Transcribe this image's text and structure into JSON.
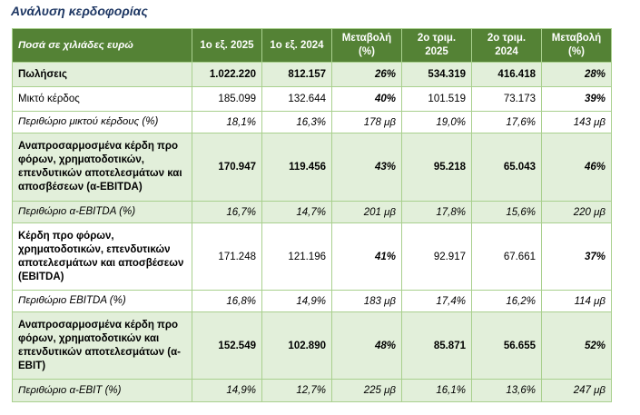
{
  "title": "Ανάλυση κερδοφορίας",
  "columns": [
    "Ποσά σε χιλιάδες ευρώ",
    "1ο εξ. 2025",
    "1ο εξ. 2024",
    "Μεταβολή (%)",
    "2ο τριμ. 2025",
    "2ο τριμ. 2024",
    "Μεταβολή (%)"
  ],
  "rows": [
    {
      "label": "Πωλήσεις",
      "h1_2025": "1.022.220",
      "h1_2024": "812.157",
      "h1_change": "26%",
      "q2_2025": "534.319",
      "q2_2024": "416.418",
      "q2_change": "28%"
    },
    {
      "label": "Μικτό κέρδος",
      "h1_2025": "185.099",
      "h1_2024": "132.644",
      "h1_change": "40%",
      "q2_2025": "101.519",
      "q2_2024": "73.173",
      "q2_change": "39%"
    },
    {
      "label": "Περιθώριο μικτού κέρδους (%)",
      "h1_2025": "18,1%",
      "h1_2024": "16,3%",
      "h1_change": "178 μβ",
      "q2_2025": "19,0%",
      "q2_2024": "17,6%",
      "q2_change": "143 μβ"
    },
    {
      "label": "Αναπροσαρμοσμένα κέρδη προ φόρων, χρηματοδοτικών, επενδυτικών αποτελεσμάτων και αποσβέσεων (α-EBITDA)",
      "h1_2025": "170.947",
      "h1_2024": "119.456",
      "h1_change": "43%",
      "q2_2025": "95.218",
      "q2_2024": "65.043",
      "q2_change": "46%"
    },
    {
      "label": "Περιθώριο α-EBITDA (%)",
      "h1_2025": "16,7%",
      "h1_2024": "14,7%",
      "h1_change": "201 μβ",
      "q2_2025": "17,8%",
      "q2_2024": "15,6%",
      "q2_change": "220 μβ"
    },
    {
      "label": "Κέρδη προ φόρων, χρηματοδοτικών, επενδυτικών αποτελεσμάτων και αποσβέσεων (EBITDA)",
      "h1_2025": "171.248",
      "h1_2024": "121.196",
      "h1_change": "41%",
      "q2_2025": "92.917",
      "q2_2024": "67.661",
      "q2_change": "37%"
    },
    {
      "label": "Περιθώριο EBITDA (%)",
      "h1_2025": "16,8%",
      "h1_2024": "14,9%",
      "h1_change": "183 μβ",
      "q2_2025": "17,4%",
      "q2_2024": "16,2%",
      "q2_change": "114 μβ"
    },
    {
      "label": "Αναπροσαρμοσμένα κέρδη προ φόρων, χρηματοδοτικών και επενδυτικών αποτελεσμάτων (α-EBIT)",
      "h1_2025": "152.549",
      "h1_2024": "102.890",
      "h1_change": "48%",
      "q2_2025": "85.871",
      "q2_2024": "56.655",
      "q2_change": "52%"
    },
    {
      "label": "Περιθώριο α-EBIT (%)",
      "h1_2025": "14,9%",
      "h1_2024": "12,7%",
      "h1_change": "225 μβ",
      "q2_2025": "16,1%",
      "q2_2024": "13,6%",
      "q2_change": "247 μβ"
    }
  ],
  "colors": {
    "header_bg": "#548235",
    "header_text": "#ffffff",
    "row_shade": "#e2efda",
    "border": "#a9d08e",
    "title": "#1f3864"
  }
}
